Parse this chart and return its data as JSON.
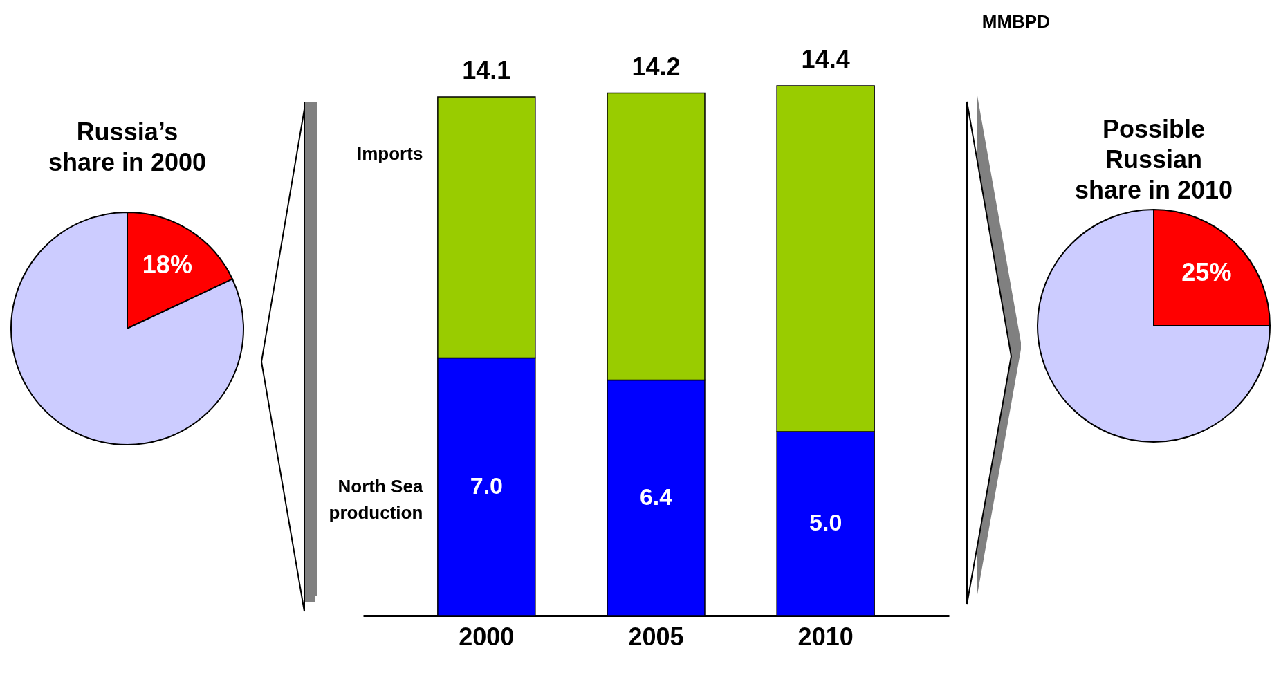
{
  "chart_data": [
    {
      "type": "pie",
      "title": "Russia’s share in 2000",
      "categories": [
        null,
        null
      ],
      "values": [
        18,
        82
      ],
      "colors": [
        "#ff0000",
        "#ccccff"
      ],
      "value_labels": [
        "18%",
        null
      ]
    },
    {
      "type": "bar",
      "stacked": true,
      "categories": [
        "2000",
        "2005",
        "2010"
      ],
      "annotations": [
        "MMBPD"
      ],
      "totals": [
        "14.1",
        "14.2",
        "14.4"
      ],
      "series": [
        {
          "name": "North Sea production",
          "color": "#0000ff",
          "values": [
            7.0,
            6.4,
            5.0
          ],
          "value_labels": [
            "7.0",
            "6.4",
            "5.0"
          ]
        },
        {
          "name": "Imports",
          "color": "#99cc00",
          "values": [
            7.1,
            7.8,
            9.4
          ]
        }
      ]
    },
    {
      "type": "pie",
      "title": "Possible Russian share in 2010",
      "categories": [
        null,
        null
      ],
      "values": [
        25,
        75
      ],
      "colors": [
        "#ff0000",
        "#ccccff"
      ],
      "value_labels": [
        "25%",
        null
      ]
    }
  ]
}
